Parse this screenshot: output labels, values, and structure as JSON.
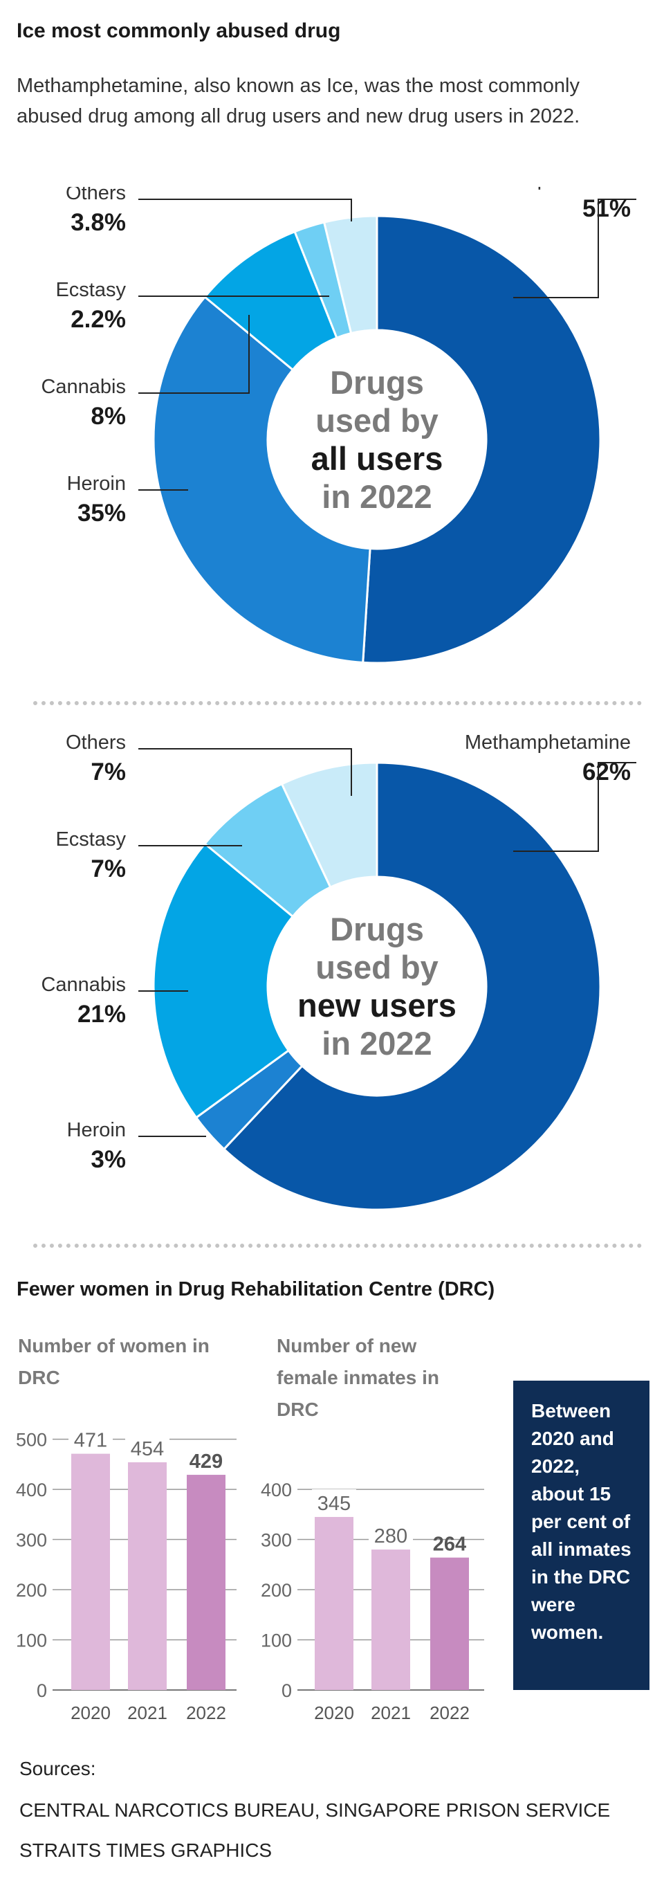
{
  "header": {
    "title": "Ice most commonly abused drug",
    "intro": "Methamphetamine, also known as Ice, was the most commonly abused drug among all drug users and new drug users in 2022."
  },
  "chart_data": [
    {
      "type": "pie",
      "variant": "donut",
      "center_label": [
        "Drugs",
        "used by",
        "all users",
        "in 2022"
      ],
      "categories": [
        "Methamphetamine",
        "Heroin",
        "Cannabis",
        "Ecstasy",
        "Others"
      ],
      "values": [
        51,
        35,
        8,
        2.2,
        3.8
      ],
      "value_labels": [
        "51%",
        "35%",
        "8%",
        "2.2%",
        "3.8%"
      ],
      "colors": [
        "#0857a8",
        "#1c82d2",
        "#03a5e5",
        "#6fcff4",
        "#c9ebf9"
      ]
    },
    {
      "type": "pie",
      "variant": "donut",
      "center_label": [
        "Drugs",
        "used by",
        "new users",
        "in 2022"
      ],
      "categories": [
        "Methamphetamine",
        "Heroin",
        "Cannabis",
        "Ecstasy",
        "Others"
      ],
      "values": [
        62,
        3,
        21,
        7,
        7
      ],
      "value_labels": [
        "62%",
        "3%",
        "21%",
        "7%",
        "7%"
      ],
      "colors": [
        "#0857a8",
        "#1c82d2",
        "#03a5e5",
        "#6fcff4",
        "#c9ebf9"
      ]
    },
    {
      "type": "bar",
      "title": "Number of women in DRC",
      "categories": [
        "2020",
        "2021",
        "2022"
      ],
      "values": [
        471,
        454,
        429
      ],
      "ylim": [
        0,
        500
      ],
      "yticks": [
        0,
        100,
        200,
        300,
        400,
        500
      ],
      "colors": [
        "#dfb8da",
        "#dfb8da",
        "#c78bc0"
      ],
      "highlight_last": true
    },
    {
      "type": "bar",
      "title": "Number of new female inmates in DRC",
      "categories": [
        "2020",
        "2021",
        "2022"
      ],
      "values": [
        345,
        280,
        264
      ],
      "ylim": [
        0,
        400
      ],
      "yticks": [
        0,
        100,
        200,
        300,
        400
      ],
      "colors": [
        "#dfb8da",
        "#dfb8da",
        "#c78bc0"
      ],
      "highlight_last": true
    }
  ],
  "section2": {
    "title": "Fewer women in Drug Rehabilitation Centre (DRC)",
    "note": "Between 2020 and 2022, about 15 per cent of all inmates in the DRC were women."
  },
  "sources": {
    "label": "Sources:",
    "line1": "CENTRAL NARCOTICS BUREAU, SINGAPORE PRISON SERVICE",
    "credit": "STRAITS TIMES GRAPHICS"
  },
  "theme": {
    "gray_text": "#7a7a7a",
    "dark_text": "#1a1a1a"
  }
}
